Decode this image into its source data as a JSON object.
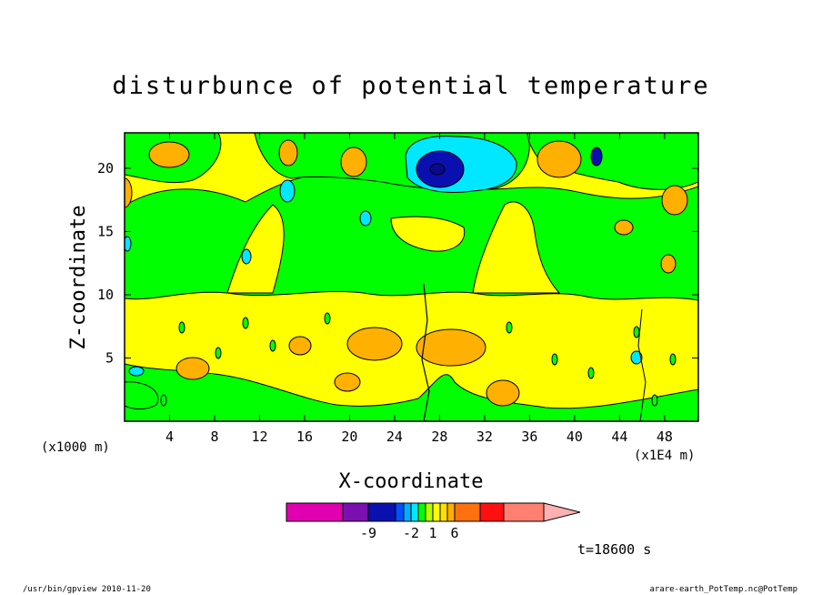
{
  "chart_data": {
    "type": "heatmap",
    "title": "disturbunce of potential temperature",
    "xlabel": "X-coordinate",
    "ylabel": "Z-coordinate",
    "x_unit": "(x1E4 m)",
    "y_unit": "(x1000 m)",
    "xlim": [
      0,
      51
    ],
    "ylim": [
      0,
      22.8
    ],
    "x_ticks": [
      4,
      8,
      12,
      16,
      20,
      24,
      28,
      32,
      36,
      40,
      44,
      48
    ],
    "y_ticks": [
      5,
      10,
      15,
      20
    ],
    "colorbar": {
      "tick_labels": [
        "-9",
        "-2",
        "1",
        "6"
      ],
      "tick_values": [
        -9,
        -2,
        1,
        6
      ],
      "levels": [
        -15,
        -12,
        -9,
        -6,
        -3,
        -2,
        -1,
        0,
        1,
        2,
        3,
        6,
        9,
        12,
        15
      ],
      "colors": [
        "#e000b0",
        "#7a10b0",
        "#0a10b0",
        "#0050ff",
        "#00b0ff",
        "#00e8ff",
        "#00ff00",
        "#b8ff00",
        "#ffff00",
        "#ffe000",
        "#ffb000",
        "#ff7010",
        "#ff1010",
        "#ff8070",
        "#ffb0b0"
      ]
    },
    "time_label": "t=18600 s",
    "colors": {
      "near_zero": "#00ff00",
      "slightly_positive": "#ffff00",
      "positive": "#ffb000",
      "strong_positive": "#ff7010",
      "negative": "#00e8ff",
      "strong_negative": "#0a10b0"
    }
  },
  "footer": {
    "left": "/usr/bin/gpview  2010-11-20",
    "right": "arare-earth_PotTemp.nc@PotTemp"
  }
}
